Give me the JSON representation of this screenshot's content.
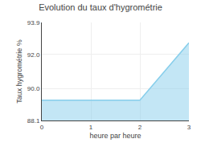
{
  "chart_data": {
    "type": "area",
    "title": "Evolution du taux d'hygrométrie",
    "xlabel": "heure par heure",
    "ylabel": "Taux hygrométrie %",
    "x": [
      0,
      2,
      2,
      3
    ],
    "values": [
      89.3,
      89.3,
      89.3,
      92.7
    ],
    "color": "#87ceeb",
    "xlim": [
      0,
      3
    ],
    "xticks": [
      0,
      1,
      2,
      3
    ],
    "ylim": [
      88.1,
      93.9
    ],
    "yticks": [
      88.1,
      {
        "value": 90.0,
        "label": "90.0"
      },
      {
        "value": 92.0,
        "label": "92.0"
      },
      93.9
    ],
    "grid": true
  }
}
